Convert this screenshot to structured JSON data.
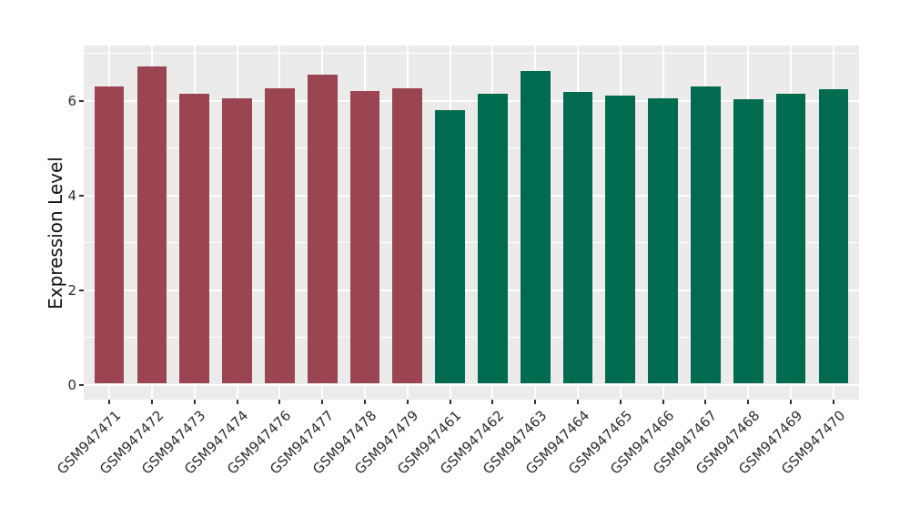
{
  "figure": {
    "background": "#ffffff",
    "panel_background": "#EBEBEB",
    "gridline_color": "#ffffff",
    "tick_color": "#333333",
    "tick_label_color": "#2e2e2e",
    "axis_title_color": "#111111"
  },
  "chart_data": {
    "type": "bar",
    "title": "",
    "xlabel": "",
    "ylabel": "Expression Level",
    "ylim": [
      0,
      7.15
    ],
    "yticks_major": [
      0,
      2,
      4,
      6
    ],
    "yticks_minor": [
      1,
      3,
      5,
      7
    ],
    "grid": true,
    "legend_position": "none",
    "x_tick_rotation_deg": 45,
    "group_colors": {
      "group_a": "#9B4452",
      "group_b": "#006B4E"
    },
    "bars": [
      {
        "category": "GSM947471",
        "value": 6.27,
        "group": "group_a"
      },
      {
        "category": "GSM947472",
        "value": 6.7,
        "group": "group_a"
      },
      {
        "category": "GSM947473",
        "value": 6.12,
        "group": "group_a"
      },
      {
        "category": "GSM947474",
        "value": 6.02,
        "group": "group_a"
      },
      {
        "category": "GSM947476",
        "value": 6.23,
        "group": "group_a"
      },
      {
        "category": "GSM947477",
        "value": 6.51,
        "group": "group_a"
      },
      {
        "category": "GSM947478",
        "value": 6.17,
        "group": "group_a"
      },
      {
        "category": "GSM947479",
        "value": 6.23,
        "group": "group_a"
      },
      {
        "category": "GSM947461",
        "value": 5.77,
        "group": "group_b"
      },
      {
        "category": "GSM947462",
        "value": 6.12,
        "group": "group_b"
      },
      {
        "category": "GSM947463",
        "value": 6.6,
        "group": "group_b"
      },
      {
        "category": "GSM947464",
        "value": 6.15,
        "group": "group_b"
      },
      {
        "category": "GSM947465",
        "value": 6.08,
        "group": "group_b"
      },
      {
        "category": "GSM947466",
        "value": 6.02,
        "group": "group_b"
      },
      {
        "category": "GSM947467",
        "value": 6.27,
        "group": "group_b"
      },
      {
        "category": "GSM947468",
        "value": 6.0,
        "group": "group_b"
      },
      {
        "category": "GSM947469",
        "value": 6.12,
        "group": "group_b"
      },
      {
        "category": "GSM947470",
        "value": 6.22,
        "group": "group_b"
      }
    ]
  }
}
